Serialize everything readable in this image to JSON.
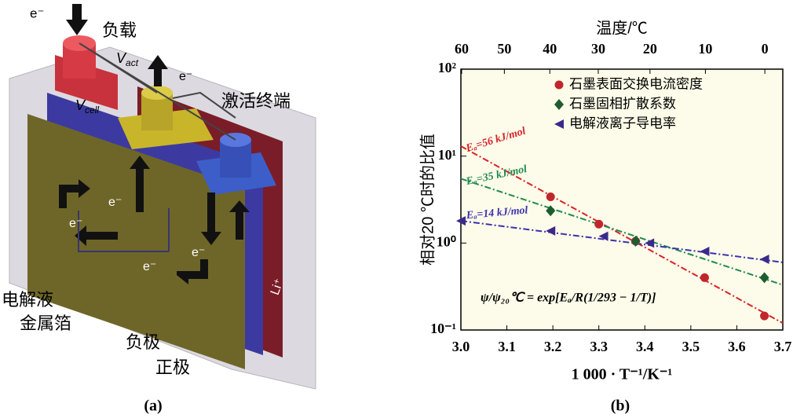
{
  "panel_a": {
    "label": "(a)",
    "texts": {
      "e_top": "e⁻",
      "load": "负载",
      "e_act": "e⁻",
      "terminal": "激活终端",
      "e1": "e⁻",
      "e2": "e⁻",
      "e3": "e⁻",
      "e4": "e⁻",
      "li": "Li⁺",
      "electrolyte": "电解液",
      "foil": "金属箔",
      "anode": "负极",
      "cathode": "正极"
    },
    "v_act": {
      "text": "V",
      "sub": "act"
    },
    "v_cell": {
      "text": "V",
      "sub": "cell"
    }
  },
  "chart_data": {
    "type": "scatter",
    "panel_label": "(b)",
    "x_label": "1 000 · T⁻¹/K⁻¹",
    "y_label": "相对20 ℃时的比值",
    "x2_label": "温度/℃",
    "xlim": [
      3.0,
      3.7
    ],
    "xticks": [
      {
        "value": 3,
        "label": "3.0"
      },
      3.1,
      3.2,
      3.3,
      3.4,
      3.5,
      3.6,
      3.7
    ],
    "x2ticks": [
      60,
      50,
      40,
      30,
      20,
      10,
      0
    ],
    "ylim": [
      0.1,
      100
    ],
    "log_y": true,
    "yticks": [
      {
        "value": 0.1,
        "label": "10⁻¹"
      },
      {
        "value": 1,
        "label": "10⁰"
      },
      {
        "value": 10,
        "label": "10¹"
      },
      {
        "value": 100,
        "label": "10²"
      }
    ],
    "legend": "upper right",
    "series": [
      {
        "name": "石墨表面交换电流密度",
        "color": "#c0262d",
        "marker": "circle",
        "x": [
          3.195,
          3.3,
          3.38,
          3.53,
          3.66
        ],
        "values": [
          3.4,
          1.65,
          1.05,
          0.4,
          0.145
        ]
      },
      {
        "name": "石墨固相扩散系数",
        "color": "#1e5c30",
        "marker": "diamond",
        "x": [
          3.195,
          3.38,
          3.66
        ],
        "values": [
          2.35,
          1.05,
          0.4
        ]
      },
      {
        "name": "电解液离子导电率",
        "color": "#3b2a8a",
        "marker": "triangle-left",
        "x": [
          3.0,
          3.195,
          3.31,
          3.41,
          3.53,
          3.66
        ],
        "values": [
          1.8,
          1.38,
          1.2,
          1.0,
          0.8,
          0.65
        ]
      }
    ],
    "fits": [
      {
        "label": "Eₐ=56 kJ/mol",
        "color": "#d8232a",
        "x": [
          3.0,
          3.7
        ],
        "values": [
          13,
          0.12
        ]
      },
      {
        "label": "Eₐ=35 kJ/mol",
        "color": "#1f8a50",
        "x": [
          3.0,
          3.7
        ],
        "values": [
          5.5,
          0.33
        ]
      },
      {
        "label": "Eₐ=14 kJ/mol",
        "color": "#3a32b0",
        "x": [
          3.0,
          3.7
        ],
        "values": [
          1.8,
          0.6
        ]
      }
    ],
    "formula": "ψ/ψ₂₀℃ = exp[Eₐ/R(1/293 − 1/T)]"
  }
}
